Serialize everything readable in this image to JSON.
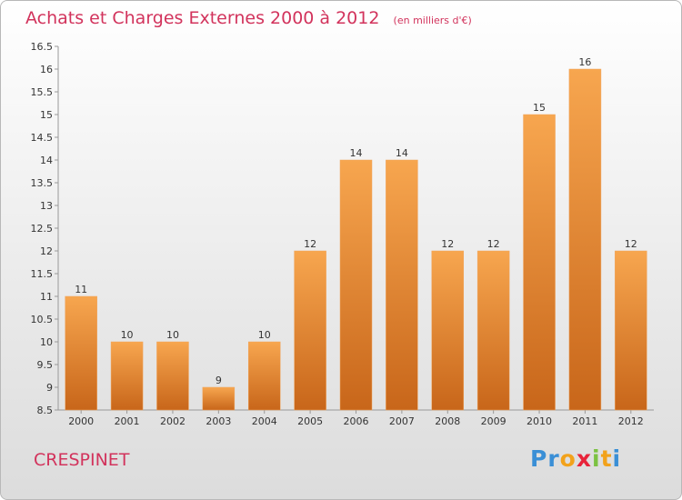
{
  "title": "Achats et Charges Externes 2000 à 2012",
  "subtitle": "(en milliers d'€)",
  "commune": "CRESPINET",
  "logo": {
    "letters": [
      "P",
      "r",
      "o",
      "x",
      "i",
      "t",
      "i"
    ],
    "colors": [
      "#3a8fd6",
      "#3a8fd6",
      "#f2a21b",
      "#e8233a",
      "#7cc242",
      "#f2a21b",
      "#3a8fd6"
    ]
  },
  "colors": {
    "accent": "#d2335c",
    "bar_top": "#f7a64f",
    "bar_bottom": "#c8661a"
  },
  "chart_data": {
    "type": "bar",
    "categories": [
      "2000",
      "2001",
      "2002",
      "2003",
      "2004",
      "2005",
      "2006",
      "2007",
      "2008",
      "2009",
      "2010",
      "2011",
      "2012"
    ],
    "values": [
      11,
      10,
      10,
      9,
      10,
      12,
      14,
      14,
      12,
      12,
      15,
      16,
      12
    ],
    "title": "Achats et Charges Externes 2000 à 2012",
    "subtitle": "(en milliers d'€)",
    "ylim": [
      8.5,
      16.5
    ],
    "yticks": [
      "8.5",
      "9",
      "9.5",
      "10",
      "10.5",
      "11",
      "11.5",
      "12",
      "12.5",
      "13",
      "13.5",
      "14",
      "14.5",
      "15",
      "15.5",
      "16",
      "16.5"
    ],
    "grid": false
  }
}
